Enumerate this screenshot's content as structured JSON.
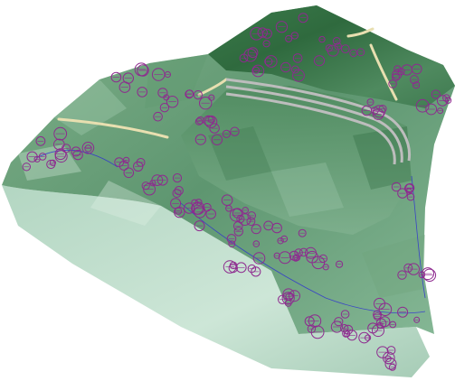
{
  "viewport": {
    "background": "#ffffff",
    "colors": {
      "terrain_dark": "#2f6a3e",
      "terrain_mid": "#6fa27c",
      "terrain_light": "#bfe0cc",
      "cliff_face": "#cde6d7",
      "trees": "#8e2a8f",
      "paths": "#e8dfb0",
      "stadium_track": "#b9b9b9",
      "contour_line": "#2b2bd6"
    },
    "icons": [
      "tree-marker-icon"
    ]
  }
}
